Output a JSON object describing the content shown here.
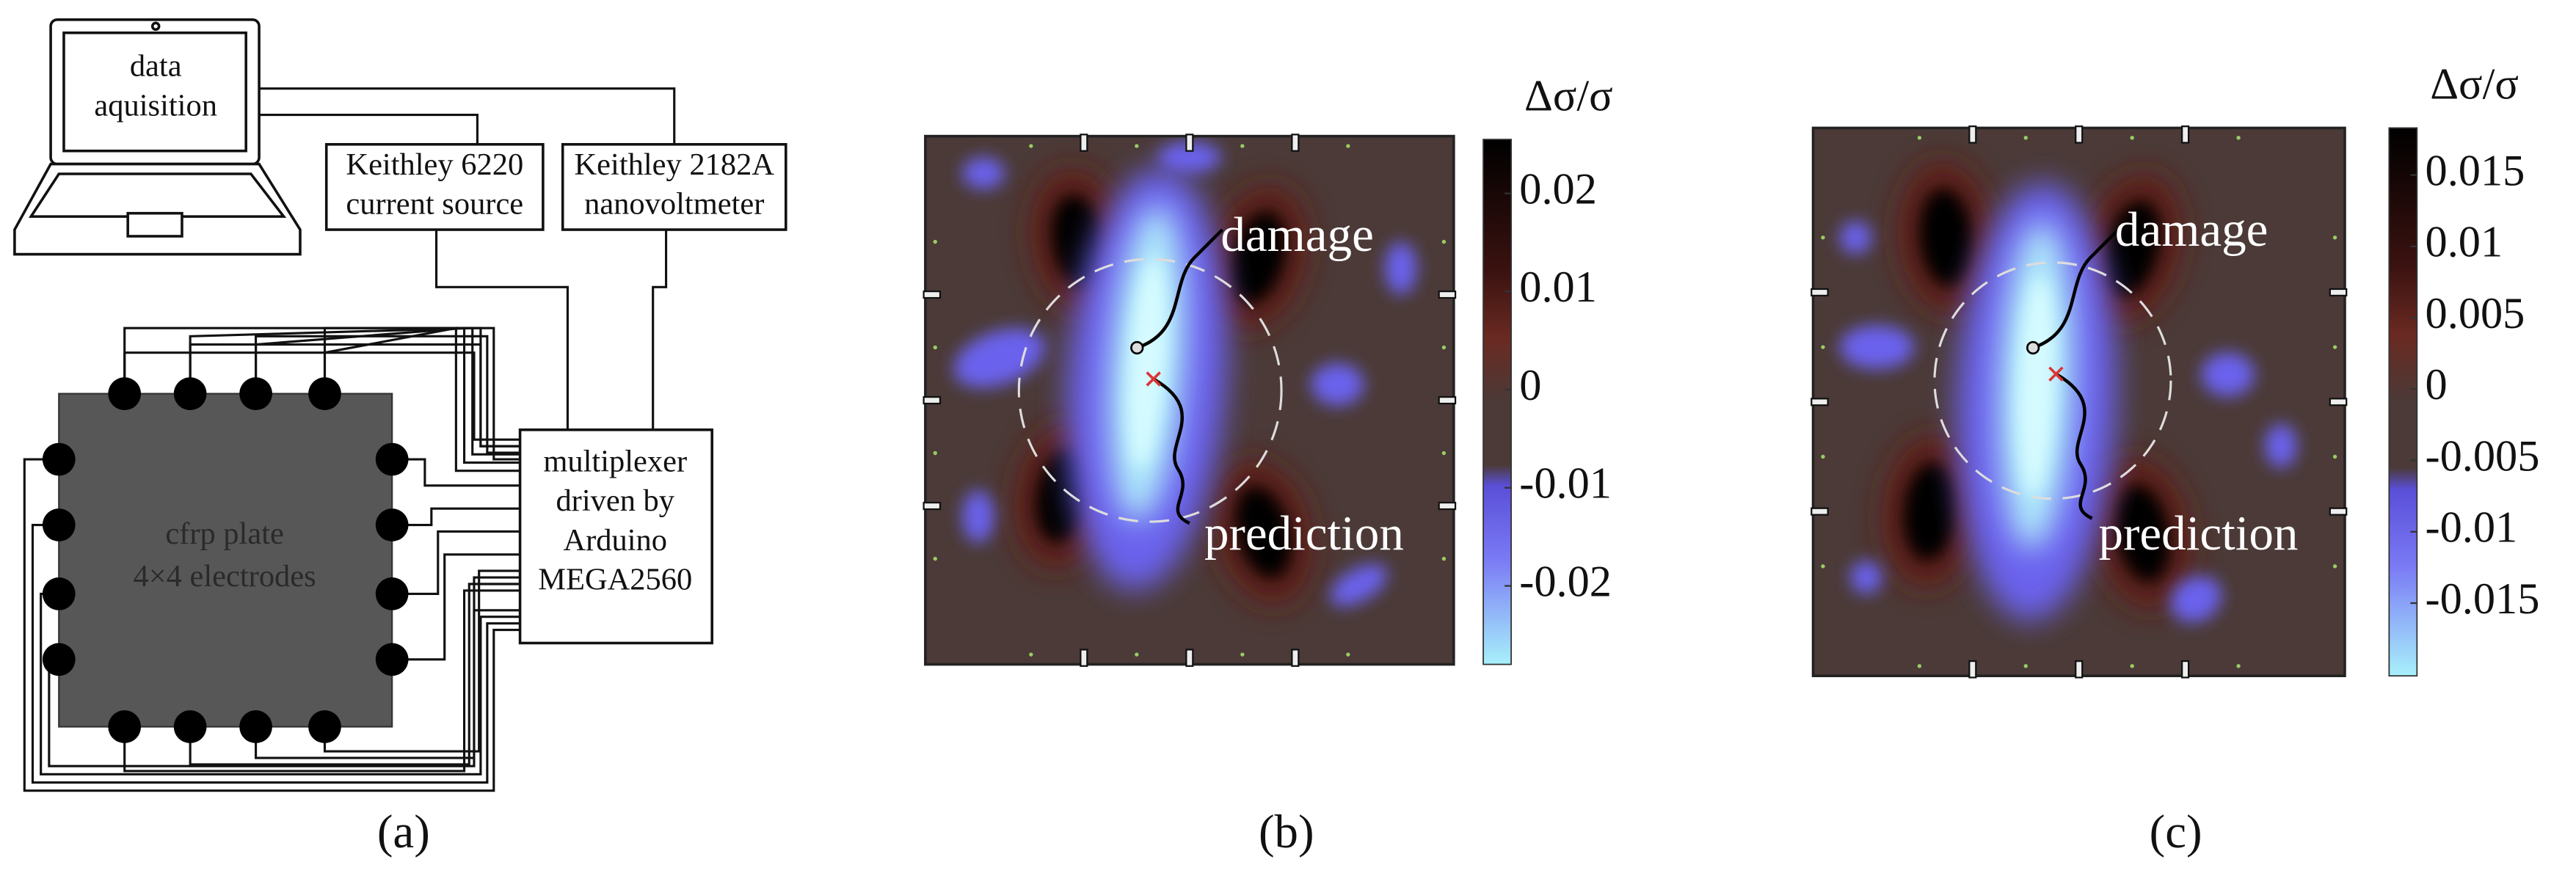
{
  "panel_a": {
    "label": "(a)",
    "laptop": [
      "data",
      "aquisition"
    ],
    "current_source": [
      "Keithley 6220",
      "current source"
    ],
    "nanovoltmeter": [
      "Keithley 2182A",
      "nanovoltmeter"
    ],
    "multiplexer": [
      "multiplexer",
      "driven by",
      "Arduino",
      "MEGA2560"
    ],
    "plate": [
      "cfrp plate",
      "4×4 electrodes"
    ]
  },
  "panel_b": {
    "label": "(b)",
    "colorbar": {
      "title": "Δσ/σ",
      "lim": [
        -0.028,
        0.0255
      ],
      "ticks": [
        0.02,
        0.01,
        0,
        -0.01,
        -0.02
      ]
    },
    "annotations": {
      "damage": "damage",
      "prediction": "prediction"
    }
  },
  "panel_c": {
    "label": "(c)",
    "colorbar": {
      "title": "Δσ/σ",
      "lim": [
        -0.0201,
        0.0183
      ],
      "ticks": [
        0.015,
        0.01,
        0.005,
        0,
        -0.005,
        -0.01,
        -0.015
      ]
    },
    "annotations": {
      "damage": "damage",
      "prediction": "prediction"
    }
  }
}
